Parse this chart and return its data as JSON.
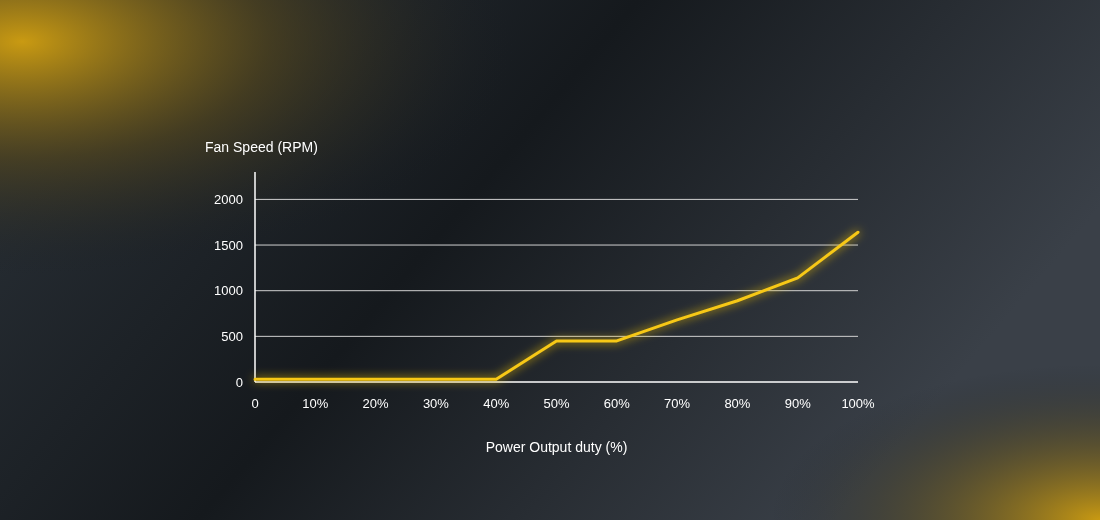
{
  "chart_data": {
    "type": "line",
    "ylabel": "Fan Speed (RPM)",
    "xlabel": "Power Output duty (%)",
    "x": [
      0,
      10,
      20,
      30,
      40,
      50,
      60,
      70,
      80,
      90,
      100
    ],
    "series": [
      {
        "color": "#f7c815",
        "values": [
          30,
          30,
          30,
          30,
          30,
          450,
          450,
          680,
          890,
          1140,
          1640
        ]
      }
    ],
    "xlim": [
      0,
      100
    ],
    "ylim": [
      0,
      2300
    ],
    "xticks": [
      0,
      {
        "value": 10,
        "label": "10%"
      },
      {
        "value": 20,
        "label": "20%"
      },
      {
        "value": 30,
        "label": "30%"
      },
      {
        "value": 40,
        "label": "40%"
      },
      {
        "value": 50,
        "label": "50%"
      },
      {
        "value": 60,
        "label": "60%"
      },
      {
        "value": 70,
        "label": "70%"
      },
      {
        "value": 80,
        "label": "80%"
      },
      {
        "value": 90,
        "label": "90%"
      },
      {
        "value": 100,
        "label": "100%"
      }
    ],
    "yticks": [
      0,
      500,
      1000,
      1500,
      2000
    ],
    "grid": "y",
    "marker": "none",
    "line_style": "solid"
  }
}
